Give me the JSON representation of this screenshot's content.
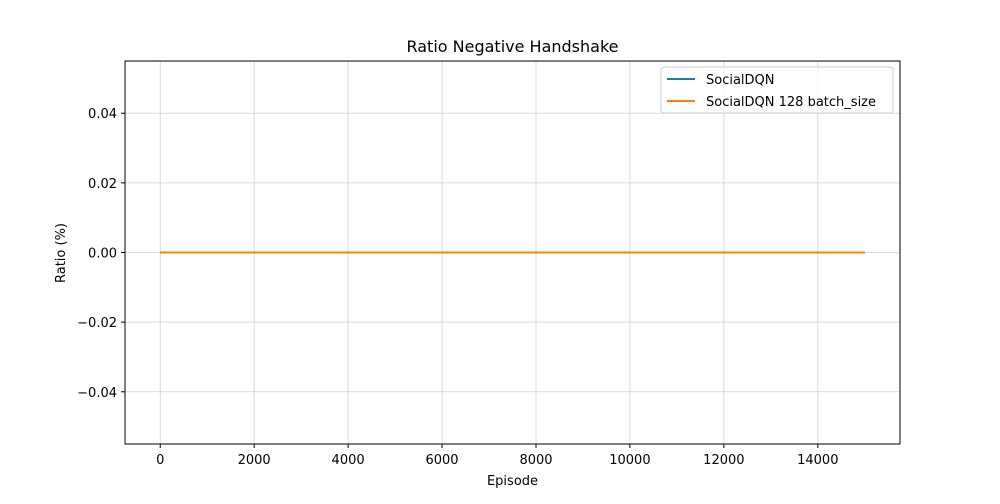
{
  "chart_data": {
    "type": "line",
    "title": "Ratio Negative Handshake",
    "xlabel": "Episode",
    "ylabel": "Ratio (%)",
    "xlim": [
      -750,
      15750
    ],
    "ylim": [
      -0.055,
      0.055
    ],
    "xticks": [
      0,
      2000,
      4000,
      6000,
      8000,
      10000,
      12000,
      14000
    ],
    "xtick_labels": [
      "0",
      "2000",
      "4000",
      "6000",
      "8000",
      "10000",
      "12000",
      "14000"
    ],
    "yticks": [
      -0.04,
      -0.02,
      0.0,
      0.02,
      0.04
    ],
    "ytick_labels": [
      "−0.04",
      "−0.02",
      "0.00",
      "0.02",
      "0.04"
    ],
    "grid": true,
    "legend_position": "top-right",
    "series": [
      {
        "name": "SocialDQN",
        "color": "#1f77b4",
        "x": [
          0,
          15000
        ],
        "y": [
          0.0,
          0.0
        ]
      },
      {
        "name": "SocialDQN 128 batch_size",
        "color": "#ff7f0e",
        "x": [
          0,
          15000
        ],
        "y": [
          0.0,
          0.0
        ]
      }
    ]
  }
}
